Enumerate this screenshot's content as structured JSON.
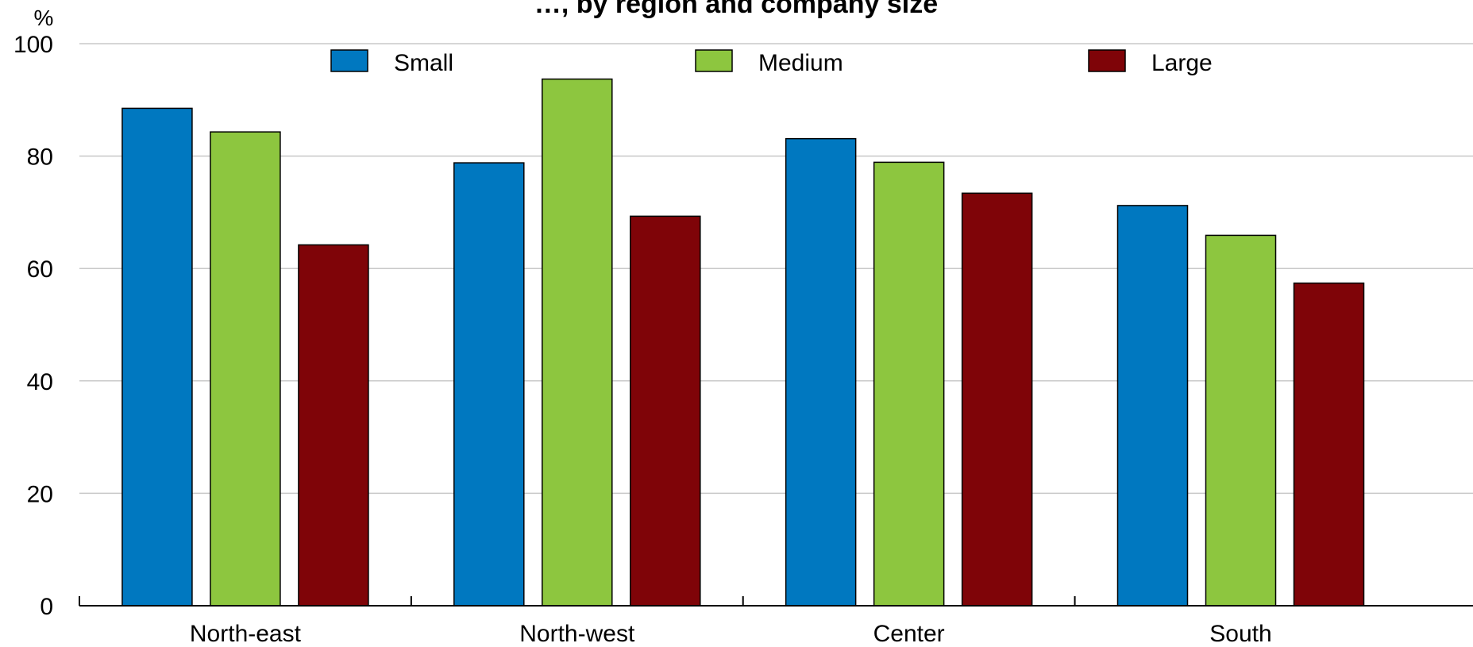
{
  "chart_data": {
    "type": "bar",
    "title": "…, by region and company size",
    "ylabel": "%",
    "xlabel": "",
    "ylim": [
      0,
      100
    ],
    "yticks": [
      0,
      20,
      40,
      60,
      80,
      100
    ],
    "grid": true,
    "legend_position": "top",
    "categories": [
      "North-east",
      "North-west",
      "Center",
      "South"
    ],
    "series": [
      {
        "name": "Small",
        "color": "#0078C0",
        "values": [
          88.5,
          78.8,
          83.1,
          71.2
        ]
      },
      {
        "name": "Medium",
        "color": "#8DC63F",
        "values": [
          84.3,
          93.7,
          78.9,
          65.9
        ]
      },
      {
        "name": "Large",
        "color": "#7F0408",
        "values": [
          64.2,
          69.3,
          73.4,
          57.4
        ]
      }
    ]
  }
}
